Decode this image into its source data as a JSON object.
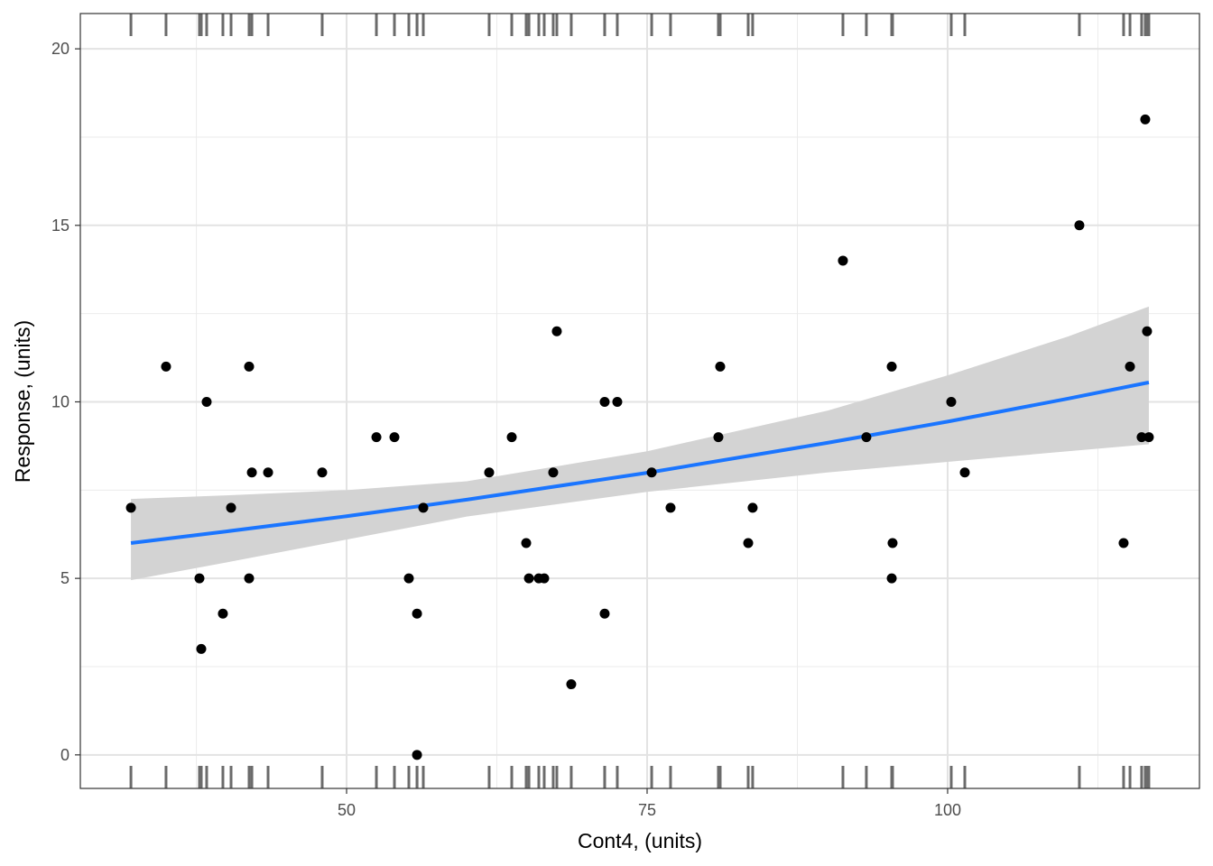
{
  "chart_data": {
    "type": "scatter",
    "xlabel": "Cont4, (units)",
    "ylabel": "Response, (units)",
    "xlim": [
      27.85,
      120.95
    ],
    "ylim": [
      -0.95,
      21.0
    ],
    "x_ticks": [
      50,
      75,
      100
    ],
    "y_ticks": [
      0,
      5,
      10,
      15,
      20
    ],
    "grid": true,
    "rug": "x values on top and bottom",
    "colors": {
      "points": "#000000",
      "fit_line": "#1a75ff",
      "ribbon": "#d3d3d3",
      "rug": "#6b6b6b"
    },
    "points": [
      [
        32.06,
        7
      ],
      [
        34.98,
        11
      ],
      [
        37.76,
        5
      ],
      [
        37.91,
        3
      ],
      [
        38.36,
        10
      ],
      [
        39.71,
        4
      ],
      [
        40.39,
        7
      ],
      [
        41.89,
        11
      ],
      [
        41.89,
        5
      ],
      [
        42.12,
        8
      ],
      [
        43.47,
        8
      ],
      [
        47.97,
        8
      ],
      [
        52.48,
        9
      ],
      [
        53.98,
        9
      ],
      [
        55.18,
        5
      ],
      [
        55.86,
        4
      ],
      [
        55.86,
        0
      ],
      [
        56.38,
        7
      ],
      [
        61.86,
        8
      ],
      [
        63.74,
        9
      ],
      [
        64.94,
        6
      ],
      [
        65.17,
        5
      ],
      [
        65.99,
        5
      ],
      [
        66.44,
        5
      ],
      [
        67.19,
        8
      ],
      [
        67.49,
        12
      ],
      [
        68.69,
        2
      ],
      [
        71.47,
        10
      ],
      [
        71.47,
        4
      ],
      [
        72.52,
        10
      ],
      [
        75.38,
        8
      ],
      [
        76.95,
        7
      ],
      [
        80.93,
        9
      ],
      [
        81.08,
        11
      ],
      [
        83.41,
        6
      ],
      [
        83.78,
        7
      ],
      [
        91.29,
        14
      ],
      [
        93.24,
        9
      ],
      [
        95.35,
        11
      ],
      [
        95.35,
        5
      ],
      [
        95.42,
        6
      ],
      [
        100.3,
        10
      ],
      [
        101.43,
        8
      ],
      [
        110.96,
        15
      ],
      [
        114.64,
        6
      ],
      [
        115.17,
        11
      ],
      [
        116.14,
        9
      ],
      [
        116.44,
        18
      ],
      [
        116.59,
        12
      ],
      [
        116.74,
        9
      ]
    ],
    "fit": {
      "x": [
        32.06,
        40,
        50,
        60,
        75,
        90,
        100,
        110,
        116.74
      ],
      "y": [
        6.0,
        6.33,
        6.76,
        7.23,
        7.99,
        8.84,
        9.44,
        10.09,
        10.55
      ],
      "lower": [
        4.95,
        5.45,
        6.1,
        6.75,
        7.45,
        8.0,
        8.3,
        8.6,
        8.8
      ],
      "upper": [
        7.25,
        7.35,
        7.5,
        7.75,
        8.6,
        9.75,
        10.75,
        11.85,
        12.7
      ]
    }
  }
}
